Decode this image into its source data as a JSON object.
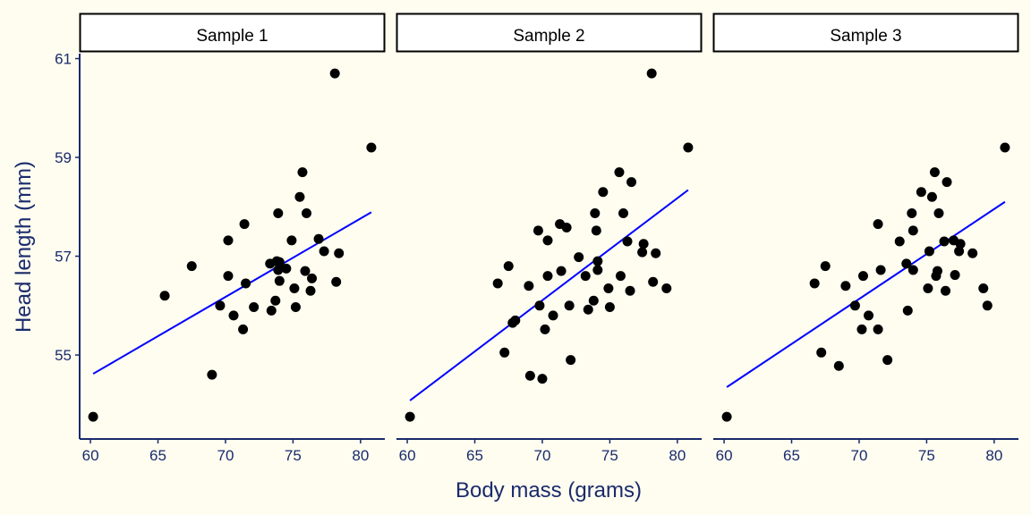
{
  "chart_data": {
    "type": "scatter",
    "xlabel": "Body mass (grams)",
    "ylabel": "Head length (mm)",
    "xlim": [
      59.2,
      81.8
    ],
    "ylim": [
      53.3,
      61.1
    ],
    "x_ticks": [
      60,
      65,
      70,
      75,
      80
    ],
    "y_ticks": [
      55,
      57,
      59,
      61
    ],
    "grid": false,
    "point_color": "#000000",
    "line_color": "#0000ff",
    "panel_background": "#fefdf0",
    "axis_color": "#1a2a6b",
    "panels": [
      {
        "title": "Sample 1",
        "fit_line": [
          [
            60.2,
            54.62
          ],
          [
            80.8,
            57.89
          ]
        ],
        "points": [
          [
            60.2,
            53.75
          ],
          [
            65.5,
            56.2
          ],
          [
            67.5,
            56.8
          ],
          [
            69.0,
            54.6
          ],
          [
            69.6,
            56.0
          ],
          [
            70.2,
            57.32
          ],
          [
            70.2,
            56.6
          ],
          [
            70.6,
            55.8
          ],
          [
            71.3,
            55.52
          ],
          [
            71.4,
            57.65
          ],
          [
            71.5,
            56.45
          ],
          [
            72.1,
            55.97
          ],
          [
            73.3,
            56.85
          ],
          [
            73.4,
            55.9
          ],
          [
            73.7,
            56.1
          ],
          [
            73.8,
            56.9
          ],
          [
            73.9,
            57.87
          ],
          [
            73.9,
            56.72
          ],
          [
            74.0,
            56.5
          ],
          [
            74.0,
            56.88
          ],
          [
            74.5,
            56.75
          ],
          [
            74.9,
            57.32
          ],
          [
            75.1,
            56.35
          ],
          [
            75.2,
            55.97
          ],
          [
            75.5,
            58.2
          ],
          [
            75.7,
            58.7
          ],
          [
            75.9,
            56.7
          ],
          [
            76.0,
            57.87
          ],
          [
            76.3,
            56.3
          ],
          [
            76.4,
            56.55
          ],
          [
            76.9,
            57.35
          ],
          [
            77.3,
            57.1
          ],
          [
            78.1,
            60.7
          ],
          [
            78.2,
            56.48
          ],
          [
            78.4,
            57.06
          ],
          [
            80.8,
            59.2
          ]
        ]
      },
      {
        "title": "Sample 2",
        "fit_line": [
          [
            60.2,
            54.08
          ],
          [
            80.8,
            58.34
          ]
        ],
        "points": [
          [
            60.2,
            53.75
          ],
          [
            66.7,
            56.45
          ],
          [
            67.2,
            55.05
          ],
          [
            67.5,
            56.8
          ],
          [
            67.8,
            55.65
          ],
          [
            68.0,
            55.7
          ],
          [
            69.0,
            56.4
          ],
          [
            69.1,
            54.58
          ],
          [
            69.7,
            57.52
          ],
          [
            69.8,
            56.0
          ],
          [
            70.0,
            54.52
          ],
          [
            70.2,
            55.52
          ],
          [
            70.4,
            56.6
          ],
          [
            70.4,
            57.32
          ],
          [
            70.8,
            55.8
          ],
          [
            71.3,
            57.65
          ],
          [
            71.4,
            56.7
          ],
          [
            71.8,
            57.58
          ],
          [
            72.0,
            56.0
          ],
          [
            72.1,
            54.9
          ],
          [
            72.7,
            56.98
          ],
          [
            73.2,
            56.6
          ],
          [
            73.4,
            55.92
          ],
          [
            73.8,
            56.1
          ],
          [
            73.9,
            57.87
          ],
          [
            74.0,
            57.52
          ],
          [
            74.1,
            56.9
          ],
          [
            74.1,
            56.72
          ],
          [
            74.5,
            58.3
          ],
          [
            74.9,
            56.35
          ],
          [
            75.0,
            55.97
          ],
          [
            75.7,
            58.7
          ],
          [
            75.8,
            56.6
          ],
          [
            76.0,
            57.87
          ],
          [
            76.3,
            57.3
          ],
          [
            76.5,
            56.3
          ],
          [
            76.6,
            58.5
          ],
          [
            77.4,
            57.08
          ],
          [
            77.5,
            57.25
          ],
          [
            78.1,
            60.7
          ],
          [
            78.2,
            56.48
          ],
          [
            78.4,
            57.06
          ],
          [
            79.2,
            56.35
          ],
          [
            80.8,
            59.2
          ]
        ]
      },
      {
        "title": "Sample 3",
        "fit_line": [
          [
            60.2,
            54.35
          ],
          [
            80.8,
            58.1
          ]
        ],
        "points": [
          [
            60.2,
            53.75
          ],
          [
            66.7,
            56.45
          ],
          [
            67.2,
            55.05
          ],
          [
            67.5,
            56.8
          ],
          [
            68.5,
            54.78
          ],
          [
            69.0,
            56.4
          ],
          [
            69.7,
            56.0
          ],
          [
            70.2,
            55.52
          ],
          [
            70.3,
            56.6
          ],
          [
            70.7,
            55.8
          ],
          [
            71.4,
            57.65
          ],
          [
            71.4,
            55.52
          ],
          [
            71.6,
            56.72
          ],
          [
            72.1,
            54.9
          ],
          [
            73.0,
            57.3
          ],
          [
            73.5,
            56.85
          ],
          [
            73.6,
            55.9
          ],
          [
            73.9,
            57.87
          ],
          [
            74.0,
            56.72
          ],
          [
            74.0,
            57.52
          ],
          [
            74.6,
            58.3
          ],
          [
            75.1,
            56.35
          ],
          [
            75.2,
            57.1
          ],
          [
            75.4,
            58.2
          ],
          [
            75.6,
            58.7
          ],
          [
            75.7,
            56.6
          ],
          [
            75.8,
            56.7
          ],
          [
            75.9,
            57.87
          ],
          [
            76.3,
            57.3
          ],
          [
            76.4,
            56.3
          ],
          [
            76.5,
            58.5
          ],
          [
            77.0,
            57.32
          ],
          [
            77.1,
            56.62
          ],
          [
            77.4,
            57.1
          ],
          [
            77.5,
            57.25
          ],
          [
            78.4,
            57.06
          ],
          [
            79.2,
            56.35
          ],
          [
            79.5,
            56.0
          ],
          [
            80.8,
            59.2
          ]
        ]
      }
    ]
  }
}
